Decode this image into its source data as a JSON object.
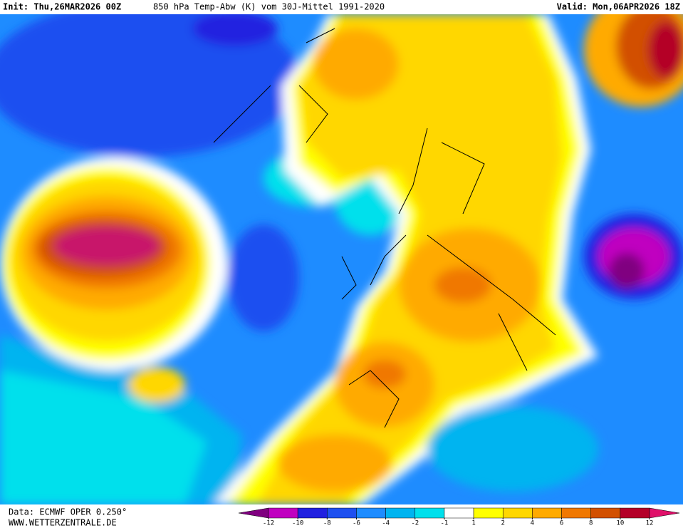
{
  "header": {
    "init": "Init: Thu,26MAR2026 00Z",
    "title": "850 hPa Temp-Abw (K) vom 30J-Mittel 1991-2020",
    "valid": "Valid: Mon,06APR2026 18Z"
  },
  "footer": {
    "source": "Data: ECMWF OPER 0.250°",
    "website": "WWW.WETTERZENTRALE.DE"
  },
  "legend": {
    "ticks": [
      -12,
      -10,
      -8,
      -6,
      -4,
      -2,
      -1,
      1,
      2,
      4,
      6,
      8,
      10,
      12
    ],
    "colors": [
      "#800080",
      "#c000c0",
      "#2020e0",
      "#1e50f0",
      "#1e8cff",
      "#00b4f0",
      "#00e0ec",
      "#ffffff",
      "#ffff00",
      "#ffd700",
      "#ffaa00",
      "#f07800",
      "#d25000",
      "#b40028",
      "#e0106a"
    ]
  }
}
